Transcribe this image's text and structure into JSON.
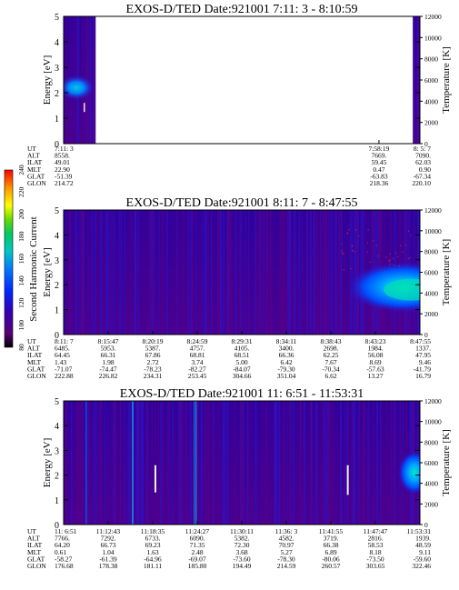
{
  "chart_data": [
    {
      "type": "heatmap",
      "title": "EXOS-D/TED   Date:921001  7:11: 3 - 8:10:59",
      "ylabel": "Energy [eV]",
      "y2label": "Temperature [K]",
      "ylim": [
        0,
        5
      ],
      "y2lim": [
        0,
        12000
      ],
      "yticks": [
        "0",
        "1",
        "2",
        "3",
        "4",
        "5"
      ],
      "y2ticks": [
        "0",
        "2000",
        "4000",
        "6000",
        "8000",
        "10000",
        "12000"
      ],
      "data_segments": [
        [
          0.0,
          0.09
        ],
        [
          0.98,
          1.0
        ]
      ],
      "orbit_table": {
        "row_labels": [
          "UT",
          "ALT",
          "ILAT",
          "MLT",
          "GLAT",
          "GLON"
        ],
        "columns": [
          [
            "7:11: 3",
            "8558.",
            "49.01",
            "22.90",
            "-51.39",
            "214.72"
          ],
          [
            "7:58:19",
            "7669.",
            "59.45",
            "0.47",
            "-63.83",
            "218.36"
          ],
          [
            "8: 5: 7",
            "7090.",
            "62.03",
            "0.90",
            "-67.34",
            "220.10"
          ]
        ],
        "column_positions": [
          0.0,
          0.885,
          1.0
        ]
      }
    },
    {
      "type": "heatmap",
      "title": "EXOS-D/TED   Date:921001  8:11: 7 - 8:47:55",
      "ylabel": "Energy [eV]",
      "y2label": "Temperature [K]",
      "ylim": [
        0,
        5
      ],
      "y2lim": [
        0,
        12000
      ],
      "yticks": [
        "0",
        "1",
        "2",
        "3",
        "4",
        "5"
      ],
      "y2ticks": [
        "0",
        "2000",
        "4000",
        "6000",
        "8000",
        "10000",
        "12000"
      ],
      "data_segments": [
        [
          0.0,
          1.0
        ]
      ],
      "orbit_table": {
        "row_labels": [
          "UT",
          "ALT",
          "ILAT",
          "MLT",
          "GLAT",
          "GLON"
        ],
        "columns": [
          [
            "8:11: 7",
            "6485.",
            "64.45",
            "1.43",
            "-71.07",
            "222.88"
          ],
          [
            "8:15:47",
            "5953.",
            "66.31",
            "1.98",
            "-74.47",
            "226.82"
          ],
          [
            "8:20:19",
            "5387.",
            "67.86",
            "2.72",
            "-78.23",
            "234.31"
          ],
          [
            "8:24:59",
            "4757.",
            "68.81",
            "3.74",
            "-82.27",
            "253.45"
          ],
          [
            "8:29:31",
            "4105.",
            "68.51",
            "5.00",
            "-84.07",
            "304.66"
          ],
          [
            "8:34:11",
            "3400.",
            "66.36",
            "6.42",
            "-79.30",
            "351.04"
          ],
          [
            "8:38:43",
            "2698.",
            "62.25",
            "7.67",
            "-70.34",
            "6.62"
          ],
          [
            "8:43:23",
            "1984.",
            "56.08",
            "8.69",
            "-57.63",
            "13.27"
          ],
          [
            "8:47:55",
            "1337.",
            "47.95",
            "9.46",
            "-41.79",
            "16.79"
          ]
        ],
        "column_positions": [
          0.0,
          0.125,
          0.25,
          0.375,
          0.5,
          0.625,
          0.75,
          0.875,
          1.0
        ]
      }
    },
    {
      "type": "heatmap",
      "title": "EXOS-D/TED   Date:921001  11: 6:51 - 11:53:31",
      "ylabel": "Energy [eV]",
      "y2label": "Temperature [K]",
      "ylim": [
        0,
        5
      ],
      "y2lim": [
        0,
        12000
      ],
      "yticks": [
        "0",
        "1",
        "2",
        "3",
        "4",
        "5"
      ],
      "y2ticks": [
        "0",
        "2000",
        "4000",
        "6000",
        "8000",
        "10000",
        "12000"
      ],
      "data_segments": [
        [
          0.0,
          1.0
        ]
      ],
      "orbit_table": {
        "row_labels": [
          "UT",
          "ALT",
          "ILAT",
          "MLT",
          "GLAT",
          "GLON"
        ],
        "columns": [
          [
            "11: 6:51",
            "7766.",
            "64.20",
            "0.61",
            "-58.27",
            "176.68"
          ],
          [
            "11:12:43",
            "7292.",
            "66.73",
            "1.04",
            "-61.39",
            "178.38"
          ],
          [
            "11:18:35",
            "6733.",
            "69.23",
            "1.63",
            "-64.96",
            "181.11"
          ],
          [
            "11:24:27",
            "6090.",
            "71.35",
            "2.48",
            "-69.07",
            "185.80"
          ],
          [
            "11:30:11",
            "5382.",
            "72.30",
            "3.68",
            "-73.60",
            "194.49"
          ],
          [
            "11:36: 3",
            "4582.",
            "70.97",
            "5.27",
            "-78.30",
            "214.59"
          ],
          [
            "11:41:55",
            "3719.",
            "66.38",
            "6.89",
            "-80.06",
            "260.57"
          ],
          [
            "11:47:47",
            "2816.",
            "58.53",
            "8.18",
            "-73.50",
            "303.65"
          ],
          [
            "11:53:31",
            "1939.",
            "48.59",
            "9.11",
            "-59.60",
            "322.46"
          ]
        ],
        "column_positions": [
          0.0,
          0.125,
          0.25,
          0.375,
          0.5,
          0.625,
          0.75,
          0.875,
          1.0
        ]
      }
    }
  ],
  "colorbar": {
    "label": "Second Harmonic Current",
    "ticks": [
      "80",
      "100",
      "120",
      "140",
      "160",
      "180",
      "200",
      "220",
      "240"
    ],
    "range": [
      80,
      240
    ],
    "colors": [
      "#000000",
      "#5a0078",
      "#3200b4",
      "#0028ff",
      "#0078ff",
      "#00c8c8",
      "#00c864",
      "#64dc00",
      "#ffff00",
      "#ff9600",
      "#ff0000"
    ]
  }
}
